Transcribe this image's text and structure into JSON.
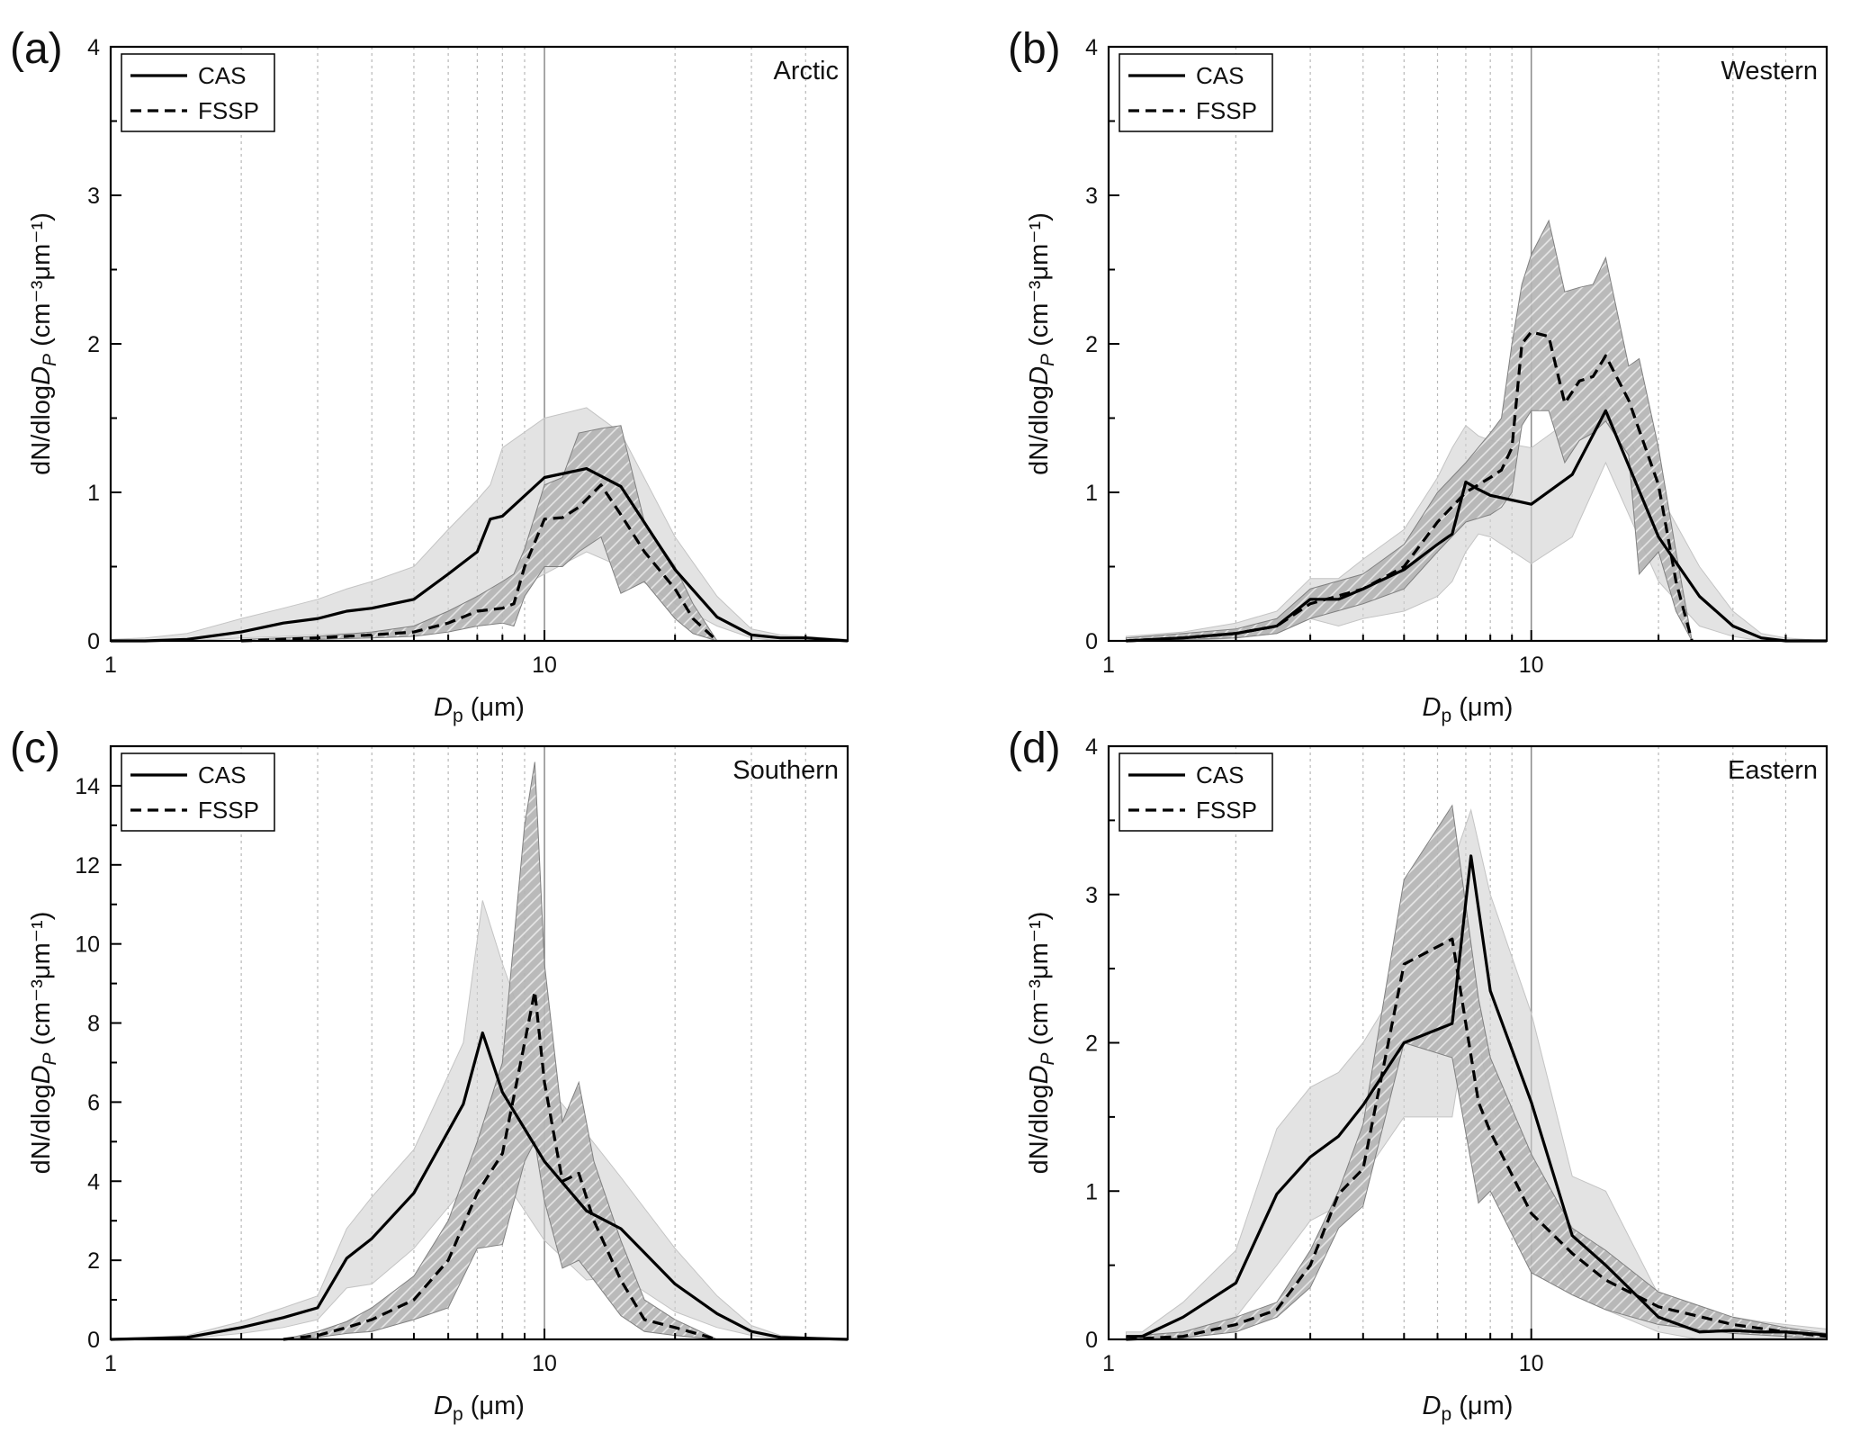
{
  "figure": {
    "xlabel_main": "D",
    "xlabel_sub": "p",
    "xlabel_unit": "(μm)",
    "ylabel_pre": "dN/dlog",
    "ylabel_var": "D",
    "ylabel_sub": "P",
    "ylabel_units": "(cm⁻³μm⁻¹)",
    "legend_cas": "CAS",
    "legend_fssp": "FSSP",
    "colors": {
      "axis": "#000000",
      "cas_band": "#d0d0d0",
      "fssp_band": "#a8a8a8",
      "grid": "#b8b8b8",
      "ref_line": "#8a8a8a"
    }
  },
  "chart_data": [
    {
      "type": "line",
      "panel_label": "(a)",
      "region": "Arctic",
      "x_scale": "log",
      "xlim": [
        1,
        50
      ],
      "ylim": [
        0,
        4
      ],
      "yticks": [
        0,
        1,
        2,
        3,
        4
      ],
      "xticks": [
        1,
        10
      ],
      "grid": "vertical dotted at 2–9, 20, 30, 40, 50; solid at 10",
      "legend": "top-left",
      "series": [
        {
          "name": "CAS",
          "style": "solid",
          "x": [
            1.0,
            1.2,
            1.5,
            2.0,
            2.5,
            3.0,
            3.5,
            4.0,
            5.0,
            6.0,
            7.0,
            7.5,
            8.0,
            10.0,
            12.5,
            15.0,
            20.0,
            25.0,
            30.0,
            35.0,
            40.0,
            50.0
          ],
          "y": [
            0.0,
            0.0,
            0.01,
            0.06,
            0.12,
            0.15,
            0.2,
            0.22,
            0.28,
            0.45,
            0.6,
            0.82,
            0.84,
            1.1,
            1.16,
            1.04,
            0.48,
            0.16,
            0.04,
            0.02,
            0.02,
            0.0
          ],
          "band_low": [
            0.0,
            0.0,
            0.0,
            0.02,
            0.03,
            0.04,
            0.05,
            0.05,
            0.05,
            0.1,
            0.15,
            0.2,
            0.3,
            0.45,
            0.6,
            0.5,
            0.25,
            0.1,
            0.02,
            0.0,
            0.0,
            0.0
          ],
          "band_high": [
            0.01,
            0.02,
            0.05,
            0.15,
            0.22,
            0.28,
            0.35,
            0.4,
            0.5,
            0.75,
            0.95,
            1.05,
            1.3,
            1.5,
            1.57,
            1.4,
            0.7,
            0.3,
            0.08,
            0.04,
            0.03,
            0.01
          ]
        },
        {
          "name": "FSSP",
          "style": "dashed",
          "x": [
            2.0,
            3.0,
            4.0,
            5.0,
            6.0,
            7.0,
            8.0,
            8.5,
            9.0,
            10.0,
            11.0,
            12.0,
            13.5,
            15.0,
            17.0,
            20.0,
            22.0,
            25.0
          ],
          "y": [
            0.0,
            0.02,
            0.04,
            0.06,
            0.12,
            0.2,
            0.22,
            0.25,
            0.5,
            0.82,
            0.83,
            0.9,
            1.05,
            0.85,
            0.6,
            0.35,
            0.15,
            0.0
          ],
          "band_low": [
            0.0,
            0.01,
            0.02,
            0.03,
            0.06,
            0.1,
            0.12,
            0.1,
            0.3,
            0.5,
            0.5,
            0.6,
            0.7,
            0.32,
            0.4,
            0.15,
            0.05,
            0.0
          ],
          "band_high": [
            0.01,
            0.03,
            0.06,
            0.1,
            0.2,
            0.3,
            0.4,
            0.45,
            0.62,
            1.05,
            1.1,
            1.4,
            1.43,
            1.45,
            0.8,
            0.5,
            0.25,
            0.0
          ]
        }
      ]
    },
    {
      "type": "line",
      "panel_label": "(b)",
      "region": "Western",
      "x_scale": "log",
      "xlim": [
        1,
        50
      ],
      "ylim": [
        0,
        4
      ],
      "yticks": [
        0,
        1,
        2,
        3,
        4
      ],
      "xticks": [
        1,
        10
      ],
      "grid": "vertical dotted at 2–9, 20, 30, 40, 50; solid at 10",
      "legend": "top-left",
      "series": [
        {
          "name": "CAS",
          "style": "solid",
          "x": [
            1.1,
            1.5,
            2.0,
            2.5,
            3.0,
            3.5,
            4.0,
            5.0,
            6.0,
            6.5,
            7.0,
            7.5,
            8.0,
            10.0,
            12.5,
            15.0,
            20.0,
            25.0,
            30.0,
            35.0,
            40.0,
            50.0
          ],
          "y": [
            0.0,
            0.02,
            0.05,
            0.1,
            0.28,
            0.28,
            0.35,
            0.48,
            0.65,
            0.72,
            1.07,
            1.02,
            0.98,
            0.92,
            1.12,
            1.55,
            0.7,
            0.3,
            0.1,
            0.02,
            0.0,
            0.0
          ],
          "band_low": [
            0.0,
            0.0,
            0.02,
            0.05,
            0.15,
            0.1,
            0.15,
            0.2,
            0.3,
            0.4,
            0.6,
            0.72,
            0.7,
            0.52,
            0.7,
            1.2,
            0.4,
            0.1,
            0.03,
            0.0,
            0.0,
            0.0
          ],
          "band_high": [
            0.03,
            0.06,
            0.12,
            0.2,
            0.42,
            0.42,
            0.55,
            0.75,
            1.1,
            1.3,
            1.45,
            1.38,
            1.35,
            1.3,
            1.5,
            1.65,
            1.0,
            0.5,
            0.2,
            0.05,
            0.02,
            0.0
          ]
        },
        {
          "name": "FSSP",
          "style": "dashed",
          "x": [
            1.1,
            1.5,
            2.0,
            2.5,
            3.0,
            4.0,
            5.0,
            6.0,
            7.0,
            8.0,
            8.5,
            9.0,
            9.5,
            10.0,
            11.0,
            12.0,
            13.0,
            14.0,
            15.0,
            17.0,
            18.0,
            20.0,
            22.0,
            24.0
          ],
          "y": [
            0.0,
            0.02,
            0.05,
            0.1,
            0.25,
            0.35,
            0.5,
            0.8,
            1.0,
            1.1,
            1.15,
            1.3,
            2.0,
            2.08,
            2.05,
            1.6,
            1.75,
            1.78,
            1.92,
            1.62,
            1.42,
            1.05,
            0.4,
            0.0
          ],
          "band_low": [
            0.0,
            0.01,
            0.02,
            0.05,
            0.15,
            0.25,
            0.35,
            0.6,
            0.8,
            0.85,
            0.9,
            1.0,
            1.45,
            1.55,
            1.55,
            1.2,
            1.35,
            1.4,
            1.48,
            1.25,
            0.45,
            0.6,
            0.2,
            0.0
          ],
          "band_high": [
            0.02,
            0.05,
            0.08,
            0.15,
            0.35,
            0.45,
            0.65,
            1.0,
            1.2,
            1.4,
            1.5,
            2.0,
            2.4,
            2.6,
            2.83,
            2.35,
            2.38,
            2.4,
            2.58,
            1.85,
            1.9,
            1.3,
            0.6,
            0.0
          ]
        }
      ]
    },
    {
      "type": "line",
      "panel_label": "(c)",
      "region": "Southern",
      "x_scale": "log",
      "xlim": [
        1,
        50
      ],
      "ylim": [
        0,
        15
      ],
      "yticks": [
        0,
        2,
        4,
        6,
        8,
        10,
        12,
        14
      ],
      "xticks": [
        1,
        10
      ],
      "grid": "vertical dotted at 2–9, 20, 30, 40, 50; solid at 10",
      "legend": "top-left",
      "series": [
        {
          "name": "CAS",
          "style": "solid",
          "x": [
            1.0,
            1.2,
            1.5,
            2.0,
            2.5,
            3.0,
            3.5,
            4.0,
            5.0,
            6.5,
            7.2,
            8.0,
            10.0,
            12.5,
            15.0,
            20.0,
            25.0,
            30.0,
            35.0,
            50.0
          ],
          "y": [
            0.0,
            0.02,
            0.05,
            0.3,
            0.55,
            0.8,
            2.05,
            2.55,
            3.7,
            5.95,
            7.75,
            6.25,
            4.5,
            3.25,
            2.8,
            1.4,
            0.65,
            0.2,
            0.05,
            0.0
          ],
          "band_low": [
            0.0,
            0.0,
            0.02,
            0.15,
            0.3,
            0.5,
            1.3,
            1.4,
            2.3,
            3.8,
            5.0,
            4.1,
            2.5,
            1.5,
            1.6,
            0.7,
            0.3,
            0.1,
            0.0,
            0.0
          ],
          "band_high": [
            0.02,
            0.05,
            0.1,
            0.45,
            0.8,
            1.1,
            2.8,
            3.6,
            4.8,
            7.5,
            11.1,
            9.5,
            6.5,
            5.2,
            4.1,
            2.3,
            1.1,
            0.35,
            0.1,
            0.0
          ]
        },
        {
          "name": "FSSP",
          "style": "dashed",
          "x": [
            2.5,
            3.0,
            3.5,
            4.0,
            5.0,
            6.0,
            7.0,
            8.0,
            9.0,
            9.5,
            10.0,
            11.0,
            12.0,
            13.0,
            15.0,
            17.0,
            20.0,
            25.0
          ],
          "y": [
            0.0,
            0.1,
            0.3,
            0.5,
            1.0,
            2.0,
            3.7,
            4.7,
            7.5,
            8.8,
            6.5,
            4.0,
            4.2,
            3.0,
            1.5,
            0.5,
            0.3,
            0.0
          ],
          "band_low": [
            0.0,
            0.05,
            0.15,
            0.2,
            0.5,
            0.8,
            2.3,
            2.4,
            4.5,
            5.0,
            3.5,
            1.8,
            2.0,
            1.5,
            0.6,
            0.2,
            0.1,
            0.0
          ],
          "band_high": [
            0.0,
            0.2,
            0.45,
            0.8,
            1.6,
            3.0,
            5.0,
            7.0,
            13.0,
            14.6,
            9.5,
            5.5,
            6.5,
            4.5,
            2.5,
            1.0,
            0.5,
            0.0
          ]
        }
      ]
    },
    {
      "type": "line",
      "panel_label": "(d)",
      "region": "Eastern",
      "x_scale": "log",
      "xlim": [
        1,
        50
      ],
      "ylim": [
        0,
        4
      ],
      "yticks": [
        0,
        1,
        2,
        3,
        4
      ],
      "xticks": [
        1,
        10
      ],
      "grid": "vertical dotted at 2–9, 20, 30, 40, 50; solid at 10",
      "legend": "top-left",
      "series": [
        {
          "name": "CAS",
          "style": "solid",
          "x": [
            1.1,
            1.2,
            1.5,
            2.0,
            2.5,
            3.0,
            3.5,
            4.0,
            5.0,
            6.5,
            7.2,
            8.0,
            10.0,
            12.5,
            15.0,
            20.0,
            25.0,
            30.0,
            35.0,
            40.0,
            50.0
          ],
          "y": [
            0.02,
            0.02,
            0.15,
            0.38,
            0.98,
            1.23,
            1.37,
            1.58,
            2.0,
            2.13,
            3.26,
            2.35,
            1.6,
            0.7,
            0.5,
            0.15,
            0.05,
            0.06,
            0.05,
            0.05,
            0.03
          ],
          "band_low": [
            0.0,
            0.0,
            0.05,
            0.15,
            0.5,
            0.8,
            0.9,
            1.1,
            1.5,
            1.5,
            2.3,
            1.6,
            0.9,
            0.3,
            0.2,
            0.05,
            0.0,
            0.0,
            0.0,
            0.0,
            0.0
          ],
          "band_high": [
            0.05,
            0.05,
            0.25,
            0.6,
            1.42,
            1.7,
            1.8,
            2.0,
            2.45,
            3.2,
            3.57,
            3.0,
            2.2,
            1.1,
            1.0,
            0.3,
            0.2,
            0.15,
            0.12,
            0.1,
            0.07
          ]
        },
        {
          "name": "FSSP",
          "style": "dashed",
          "x": [
            1.1,
            1.5,
            2.0,
            2.5,
            3.0,
            3.5,
            4.0,
            5.0,
            6.5,
            7.5,
            8.0,
            10.0,
            12.5,
            15.0,
            20.0,
            30.0,
            40.0,
            50.0
          ],
          "y": [
            0.0,
            0.02,
            0.1,
            0.2,
            0.5,
            0.98,
            1.15,
            2.53,
            2.7,
            1.6,
            1.4,
            0.85,
            0.58,
            0.4,
            0.22,
            0.1,
            0.05,
            0.02
          ],
          "band_low": [
            0.0,
            0.01,
            0.05,
            0.15,
            0.35,
            0.75,
            0.9,
            2.0,
            1.9,
            0.92,
            1.0,
            0.45,
            0.3,
            0.2,
            0.1,
            0.04,
            0.02,
            0.0
          ],
          "band_high": [
            0.02,
            0.05,
            0.15,
            0.25,
            0.6,
            1.0,
            1.45,
            3.1,
            3.6,
            2.3,
            1.9,
            1.25,
            0.75,
            0.6,
            0.32,
            0.15,
            0.08,
            0.04
          ]
        }
      ]
    }
  ]
}
